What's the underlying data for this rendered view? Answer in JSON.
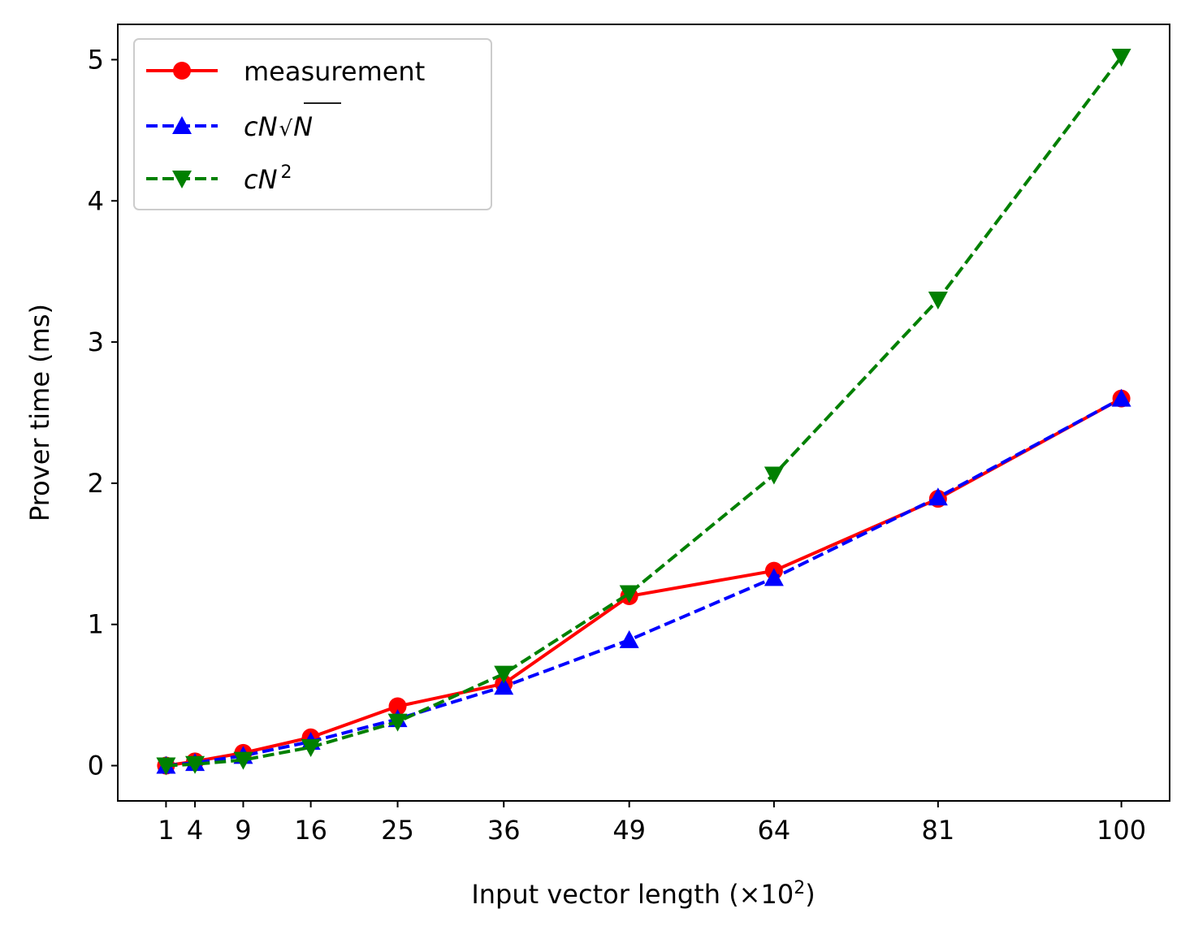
{
  "chart_data": {
    "type": "line",
    "xlabel": "Input vector length (×10",
    "xlabel_sup": "2",
    "xlabel_tail": ")",
    "ylabel": "Prover time (ms)",
    "x": [
      1,
      4,
      9,
      16,
      25,
      36,
      49,
      64,
      81,
      100
    ],
    "xticks": [
      1,
      4,
      9,
      16,
      25,
      36,
      49,
      64,
      81,
      100
    ],
    "yticks": [
      0,
      1,
      2,
      3,
      4,
      5
    ],
    "xlim": [
      -4,
      105
    ],
    "ylim": [
      -0.25,
      5.25
    ],
    "grid": false,
    "legend_position": "upper-left",
    "series": [
      {
        "name": "measurement",
        "color": "#ff0000",
        "linestyle": "solid",
        "marker": "circle",
        "values": [
          0.0,
          0.03,
          0.09,
          0.2,
          0.42,
          0.58,
          1.2,
          1.38,
          1.89,
          2.6
        ]
      },
      {
        "name": "cN√N",
        "legend_parts": [
          "cN",
          "√",
          "N"
        ],
        "color": "#0000ff",
        "linestyle": "dashed",
        "marker": "triangle-up",
        "values": [
          0.0,
          0.02,
          0.07,
          0.17,
          0.33,
          0.56,
          0.89,
          1.33,
          1.9,
          2.6
        ]
      },
      {
        "name": "cN²",
        "legend_parts": [
          "cN",
          "2"
        ],
        "color": "#008000",
        "linestyle": "dashed",
        "marker": "triangle-down",
        "values": [
          0.0,
          0.01,
          0.04,
          0.13,
          0.31,
          0.65,
          1.22,
          2.06,
          3.3,
          5.02
        ]
      }
    ]
  }
}
